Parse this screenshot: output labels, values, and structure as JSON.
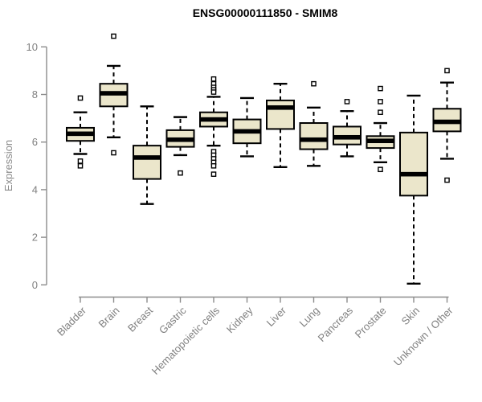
{
  "chart_data": {
    "type": "boxplot",
    "title": "ENSG00000111850 - SMIM8",
    "ylabel": "Expression",
    "xlabel": "",
    "ylim": [
      0,
      10
    ],
    "yticks": [
      0,
      2,
      4,
      6,
      8,
      10
    ],
    "grid": false,
    "legend": "none",
    "categories": [
      "Bladder",
      "Brain",
      "Breast",
      "Gastric",
      "Hematopoietic cells",
      "Kidney",
      "Liver",
      "Lung",
      "Pancreas",
      "Prostate",
      "Skin",
      "Unknown / Other"
    ],
    "series": [
      {
        "category": "Bladder",
        "whisker_low": 5.5,
        "q1": 6.05,
        "median": 6.35,
        "q3": 6.6,
        "whisker_high": 7.25,
        "outliers": [
          7.85,
          5.2,
          5.0
        ]
      },
      {
        "category": "Brain",
        "whisker_low": 6.2,
        "q1": 7.5,
        "median": 8.05,
        "q3": 8.45,
        "whisker_high": 9.2,
        "outliers": [
          10.45,
          5.55
        ]
      },
      {
        "category": "Breast",
        "whisker_low": 3.4,
        "q1": 4.45,
        "median": 5.35,
        "q3": 5.85,
        "whisker_high": 7.5,
        "outliers": []
      },
      {
        "category": "Gastric",
        "whisker_low": 5.45,
        "q1": 5.8,
        "median": 6.1,
        "q3": 6.5,
        "whisker_high": 7.05,
        "outliers": [
          4.7
        ]
      },
      {
        "category": "Hematopoietic cells",
        "whisker_low": 5.85,
        "q1": 6.65,
        "median": 6.95,
        "q3": 7.25,
        "whisker_high": 7.9,
        "outliers": [
          8.65,
          8.45,
          8.3,
          8.2,
          8.1,
          5.6,
          5.45,
          5.3,
          5.15,
          5.0,
          4.65
        ]
      },
      {
        "category": "Kidney",
        "whisker_low": 5.4,
        "q1": 5.95,
        "median": 6.45,
        "q3": 6.95,
        "whisker_high": 7.85,
        "outliers": []
      },
      {
        "category": "Liver",
        "whisker_low": 4.95,
        "q1": 6.55,
        "median": 7.45,
        "q3": 7.75,
        "whisker_high": 8.45,
        "outliers": []
      },
      {
        "category": "Lung",
        "whisker_low": 5.0,
        "q1": 5.7,
        "median": 6.1,
        "q3": 6.8,
        "whisker_high": 7.45,
        "outliers": [
          8.45
        ]
      },
      {
        "category": "Pancreas",
        "whisker_low": 5.4,
        "q1": 5.9,
        "median": 6.2,
        "q3": 6.65,
        "whisker_high": 7.3,
        "outliers": [
          7.7
        ]
      },
      {
        "category": "Prostate",
        "whisker_low": 5.15,
        "q1": 5.75,
        "median": 6.05,
        "q3": 6.25,
        "whisker_high": 6.8,
        "outliers": [
          8.25,
          7.7,
          7.25,
          4.85
        ]
      },
      {
        "category": "Skin",
        "whisker_low": 0.05,
        "q1": 3.75,
        "median": 4.65,
        "q3": 6.4,
        "whisker_high": 7.95,
        "outliers": []
      },
      {
        "category": "Unknown / Other",
        "whisker_low": 5.3,
        "q1": 6.45,
        "median": 6.85,
        "q3": 7.4,
        "whisker_high": 8.5,
        "outliers": [
          9.0,
          4.4
        ]
      }
    ],
    "colors": {
      "box_fill": "#EBE6CB",
      "box_border": "#000000",
      "median": "#000000",
      "whisker": "#000000",
      "axis": "#8C8C8C",
      "tick_label": "#808080",
      "title": "#000000"
    }
  }
}
